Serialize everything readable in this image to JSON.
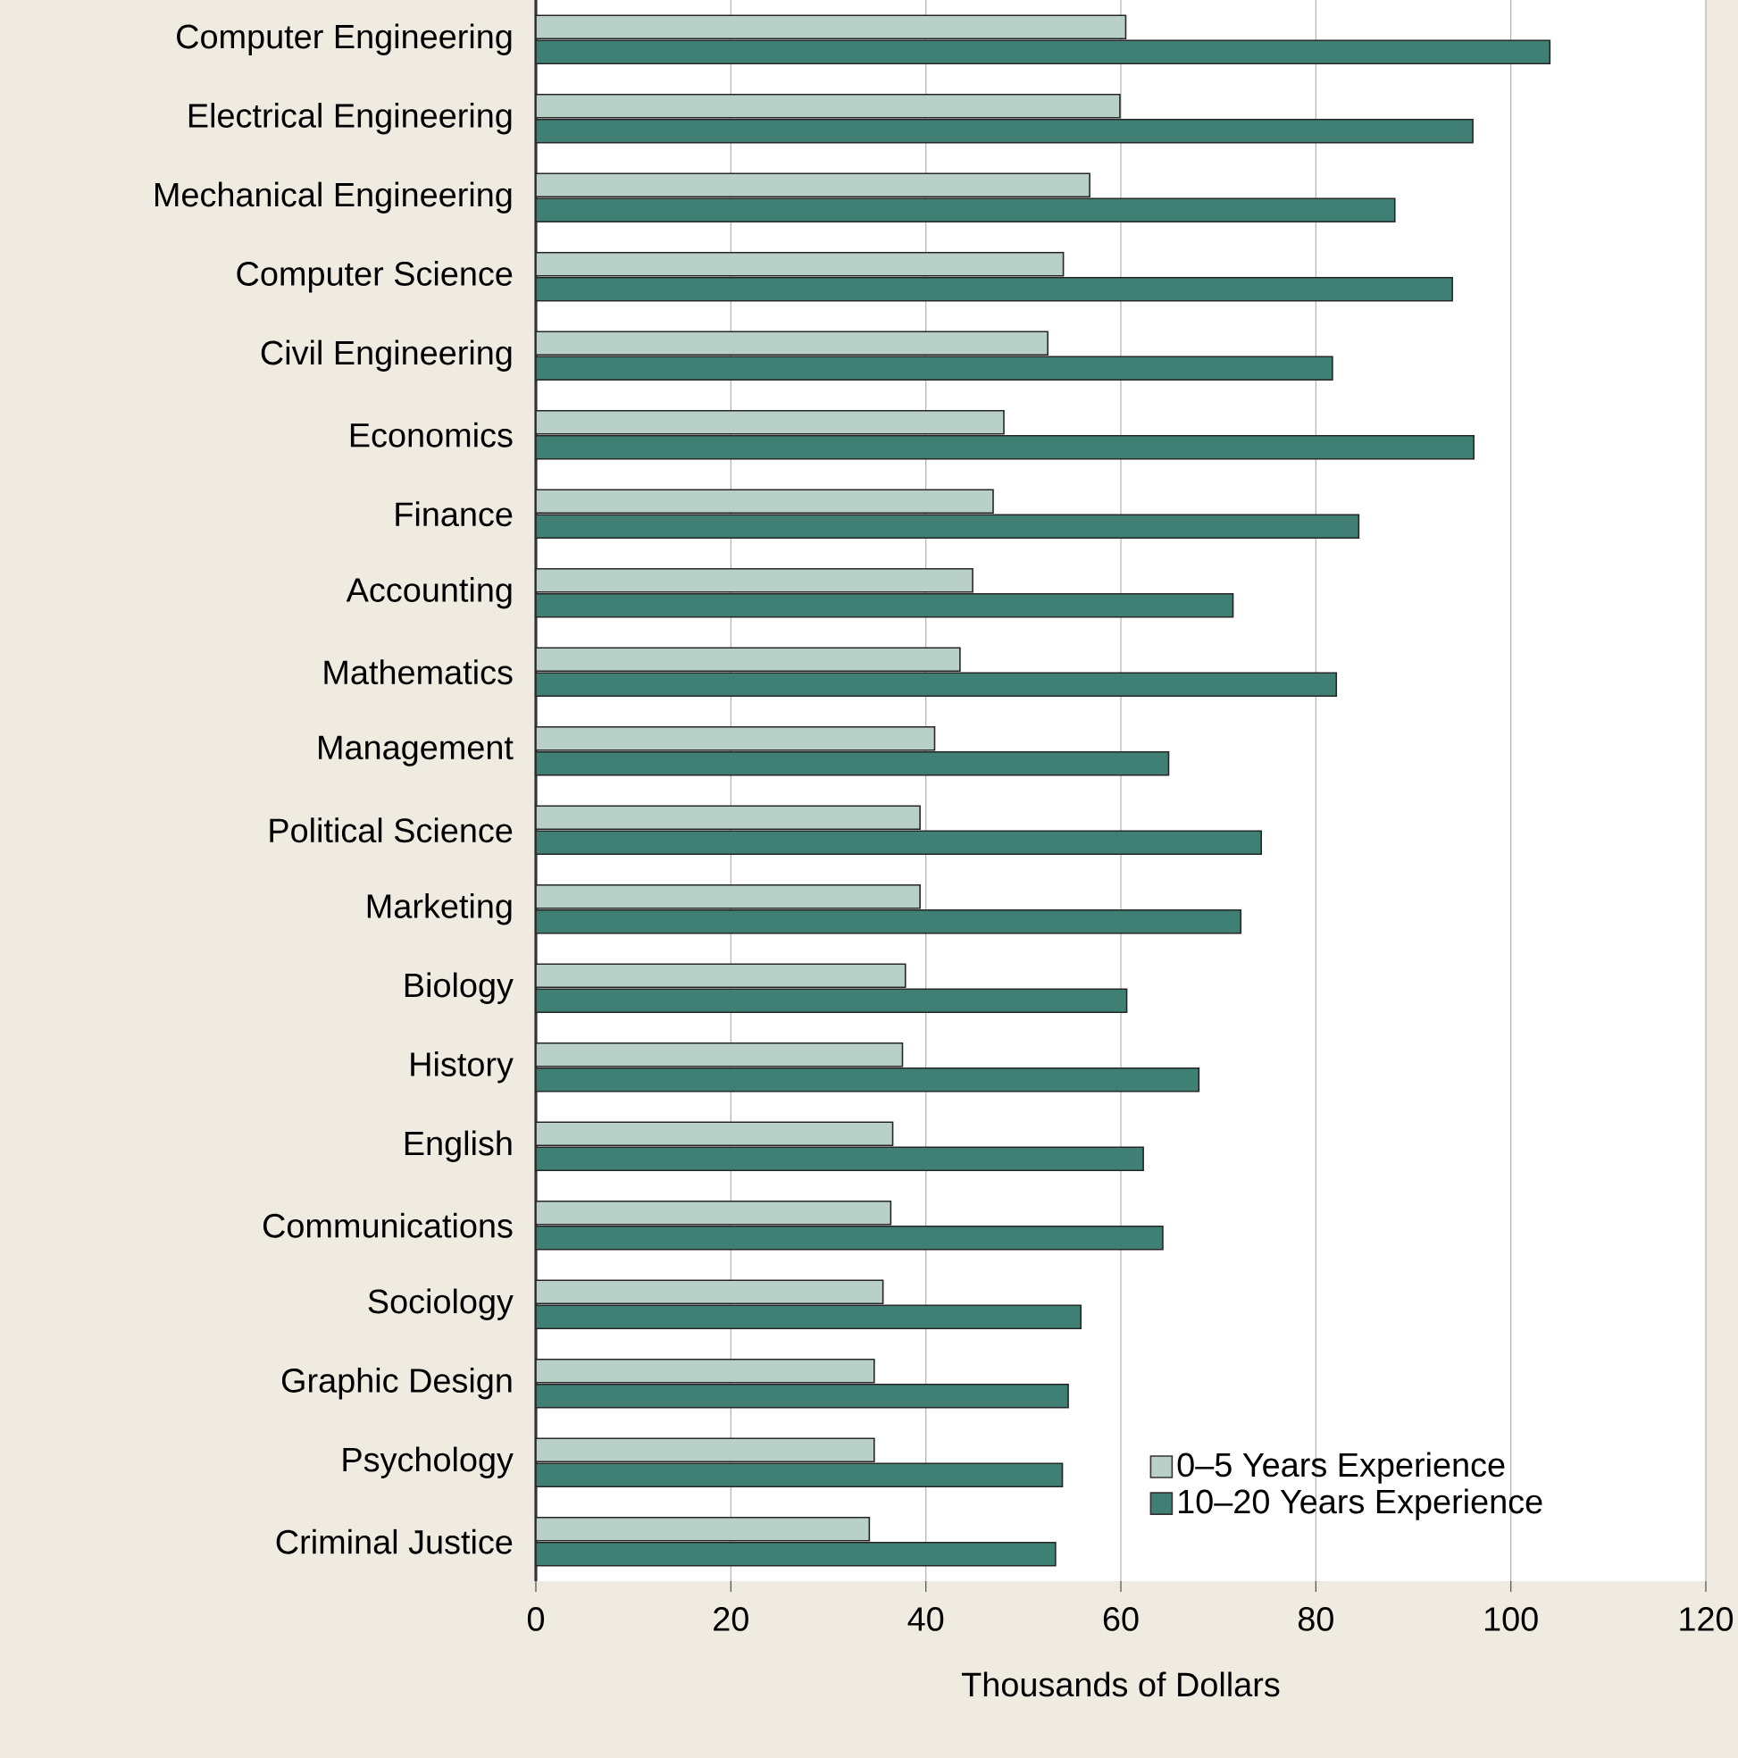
{
  "chart_data": {
    "type": "bar",
    "orientation": "horizontal",
    "xlabel": "Thousands of Dollars",
    "categories": [
      "Computer Engineering",
      "Electrical Engineering",
      "Mechanical Engineering",
      "Computer Science",
      "Civil Engineering",
      "Economics",
      "Finance",
      "Accounting",
      "Mathematics",
      "Management",
      "Political Science",
      "Marketing",
      "Biology",
      "History",
      "English",
      "Communications",
      "Sociology",
      "Graphic Design",
      "Psychology",
      "Criminal Justice"
    ],
    "series": [
      {
        "name": "0–5 Years Experience",
        "color": "#b9d0c9",
        "values": [
          60.5,
          59.9,
          56.8,
          54.1,
          52.5,
          48.0,
          46.9,
          44.8,
          43.5,
          40.9,
          39.4,
          39.4,
          37.9,
          37.6,
          36.6,
          36.4,
          35.6,
          34.7,
          34.7,
          34.2
        ]
      },
      {
        "name": "10–20 Years Experience",
        "color": "#3f7f74",
        "values": [
          104.0,
          96.1,
          88.1,
          94.0,
          81.7,
          96.2,
          84.4,
          71.5,
          82.1,
          64.9,
          74.4,
          72.3,
          60.6,
          68.0,
          62.3,
          64.3,
          55.9,
          54.6,
          54.0,
          53.3
        ]
      }
    ],
    "xlim": [
      0,
      120
    ],
    "xticks": [
      0,
      20,
      40,
      60,
      80,
      100,
      120
    ],
    "grid": "x",
    "legend": "bottom right"
  }
}
